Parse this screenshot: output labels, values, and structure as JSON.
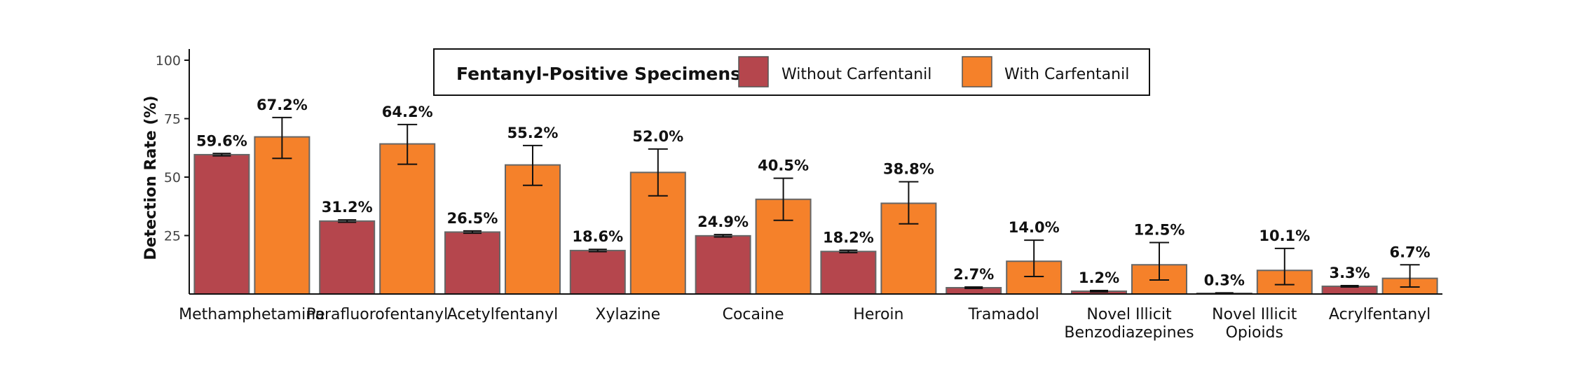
{
  "chart_data": {
    "type": "bar",
    "title": "",
    "xlabel": "",
    "ylabel": "Detection Rate (%)",
    "ylim": [
      0,
      100
    ],
    "yticks": [
      25,
      50,
      75,
      100
    ],
    "grid": false,
    "legend_position": "top-center",
    "legend_title": "Fentanyl-Positive Specimens:",
    "categories": [
      [
        "Methamphetamine"
      ],
      [
        "Parafluorofentanyl"
      ],
      [
        "Acetylfentanyl"
      ],
      [
        "Xylazine"
      ],
      [
        "Cocaine"
      ],
      [
        "Heroin"
      ],
      [
        "Tramadol"
      ],
      [
        "Novel Illicit",
        "Benzodiazepines"
      ],
      [
        "Novel Illicit",
        "Opioids"
      ],
      [
        "Acrylfentanyl"
      ]
    ],
    "series": [
      {
        "name": "Without Carfentanil",
        "color": "#b5464d",
        "values": [
          59.6,
          31.2,
          26.5,
          18.6,
          24.9,
          18.2,
          2.7,
          1.2,
          0.3,
          3.3
        ],
        "labels": [
          "59.6%",
          "31.2%",
          "26.5%",
          "18.6%",
          "24.9%",
          "18.2%",
          "2.7%",
          "1.2%",
          "0.3%",
          "3.3%"
        ],
        "error_low": [
          59.1,
          30.7,
          26.0,
          18.1,
          24.4,
          17.7,
          2.4,
          0.9,
          0.1,
          3.0
        ],
        "error_high": [
          60.1,
          31.7,
          27.0,
          19.1,
          25.4,
          18.7,
          3.0,
          1.5,
          0.5,
          3.6
        ]
      },
      {
        "name": "With Carfentanil",
        "color": "#f5812a",
        "values": [
          67.2,
          64.2,
          55.2,
          52.0,
          40.5,
          38.8,
          14.0,
          12.5,
          10.1,
          6.7
        ],
        "labels": [
          "67.2%",
          "64.2%",
          "55.2%",
          "52.0%",
          "40.5%",
          "38.8%",
          "14.0%",
          "12.5%",
          "10.1%",
          "6.7%"
        ],
        "error_low": [
          58.0,
          55.5,
          46.5,
          42.0,
          31.5,
          30.0,
          7.5,
          6.0,
          4.0,
          3.0
        ],
        "error_high": [
          75.5,
          72.5,
          63.5,
          62.0,
          49.5,
          48.0,
          23.0,
          22.0,
          19.5,
          12.5
        ]
      }
    ]
  }
}
